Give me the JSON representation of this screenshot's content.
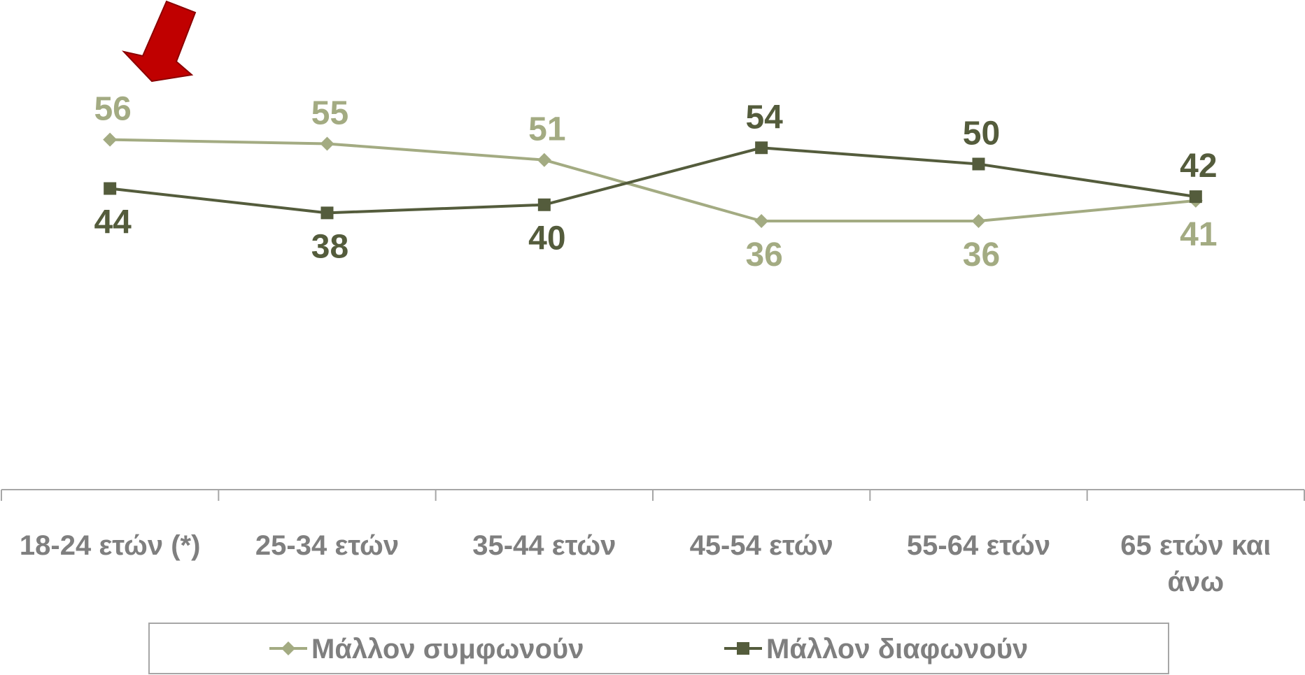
{
  "chart_data": {
    "type": "line",
    "categories": [
      "18-24 ετών (*)",
      "25-34 ετών",
      "35-44 ετών",
      "45-54 ετών",
      "55-64 ετών",
      "65 ετών και άνω"
    ],
    "series": [
      {
        "name": "Μάλλον συμφωνούν",
        "values": [
          56,
          55,
          51,
          36,
          36,
          41
        ],
        "color": "#a3ab82",
        "marker": "diamond"
      },
      {
        "name": "Μάλλον διαφωνούν",
        "values": [
          44,
          38,
          40,
          54,
          50,
          42
        ],
        "color": "#545c3c",
        "marker": "square"
      }
    ],
    "ylim": [
      -30,
      80
    ],
    "grid": false,
    "legend": "bottom",
    "axis_color": "#a6a6a6",
    "tick_label_color": "#7f7f7f",
    "annotation": {
      "kind": "arrow-icon",
      "color": "#c00000",
      "points_to": "18-24 ετών (*)"
    }
  }
}
